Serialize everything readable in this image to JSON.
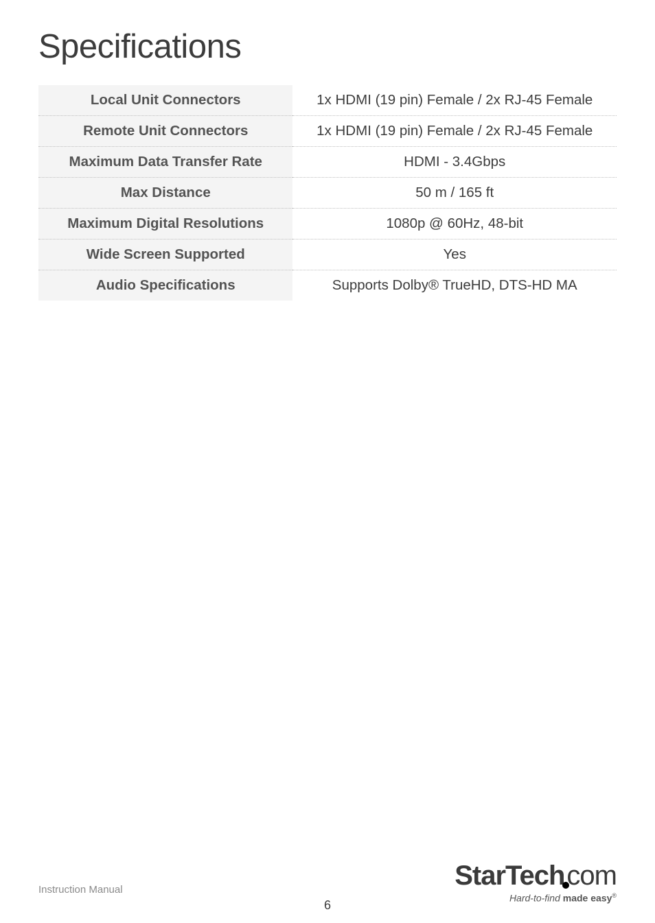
{
  "page": {
    "title": "Specifications",
    "footer_label": "Instruction Manual",
    "page_number": "6",
    "logo": {
      "text_main": "StarTech",
      "text_suffix": "com",
      "tagline_italic": "Hard-to-find",
      "tagline_bold": "made easy"
    }
  },
  "spec_table": {
    "type": "table",
    "label_bg": "#f4f4f4",
    "border_style": "dotted",
    "border_color": "#bfbfbf",
    "font_size": 20.5,
    "label_font_weight": 700,
    "value_font_weight": 400,
    "label_color": "#535353",
    "value_color": "#3c3c3c",
    "rows": [
      {
        "label": "Local Unit Connectors",
        "value": "1x HDMI (19 pin) Female / 2x RJ-45 Female"
      },
      {
        "label": "Remote Unit Connectors",
        "value": "1x HDMI (19 pin) Female / 2x RJ-45 Female"
      },
      {
        "label": "Maximum Data Transfer Rate",
        "value": "HDMI - 3.4Gbps"
      },
      {
        "label": "Max Distance",
        "value": "50 m / 165 ft"
      },
      {
        "label": "Maximum Digital Resolutions",
        "value": "1080p @ 60Hz, 48-bit"
      },
      {
        "label": "Wide Screen Supported",
        "value": "Yes"
      },
      {
        "label": "Audio Specifications",
        "value": "Supports Dolby® TrueHD, DTS-HD MA"
      }
    ]
  }
}
